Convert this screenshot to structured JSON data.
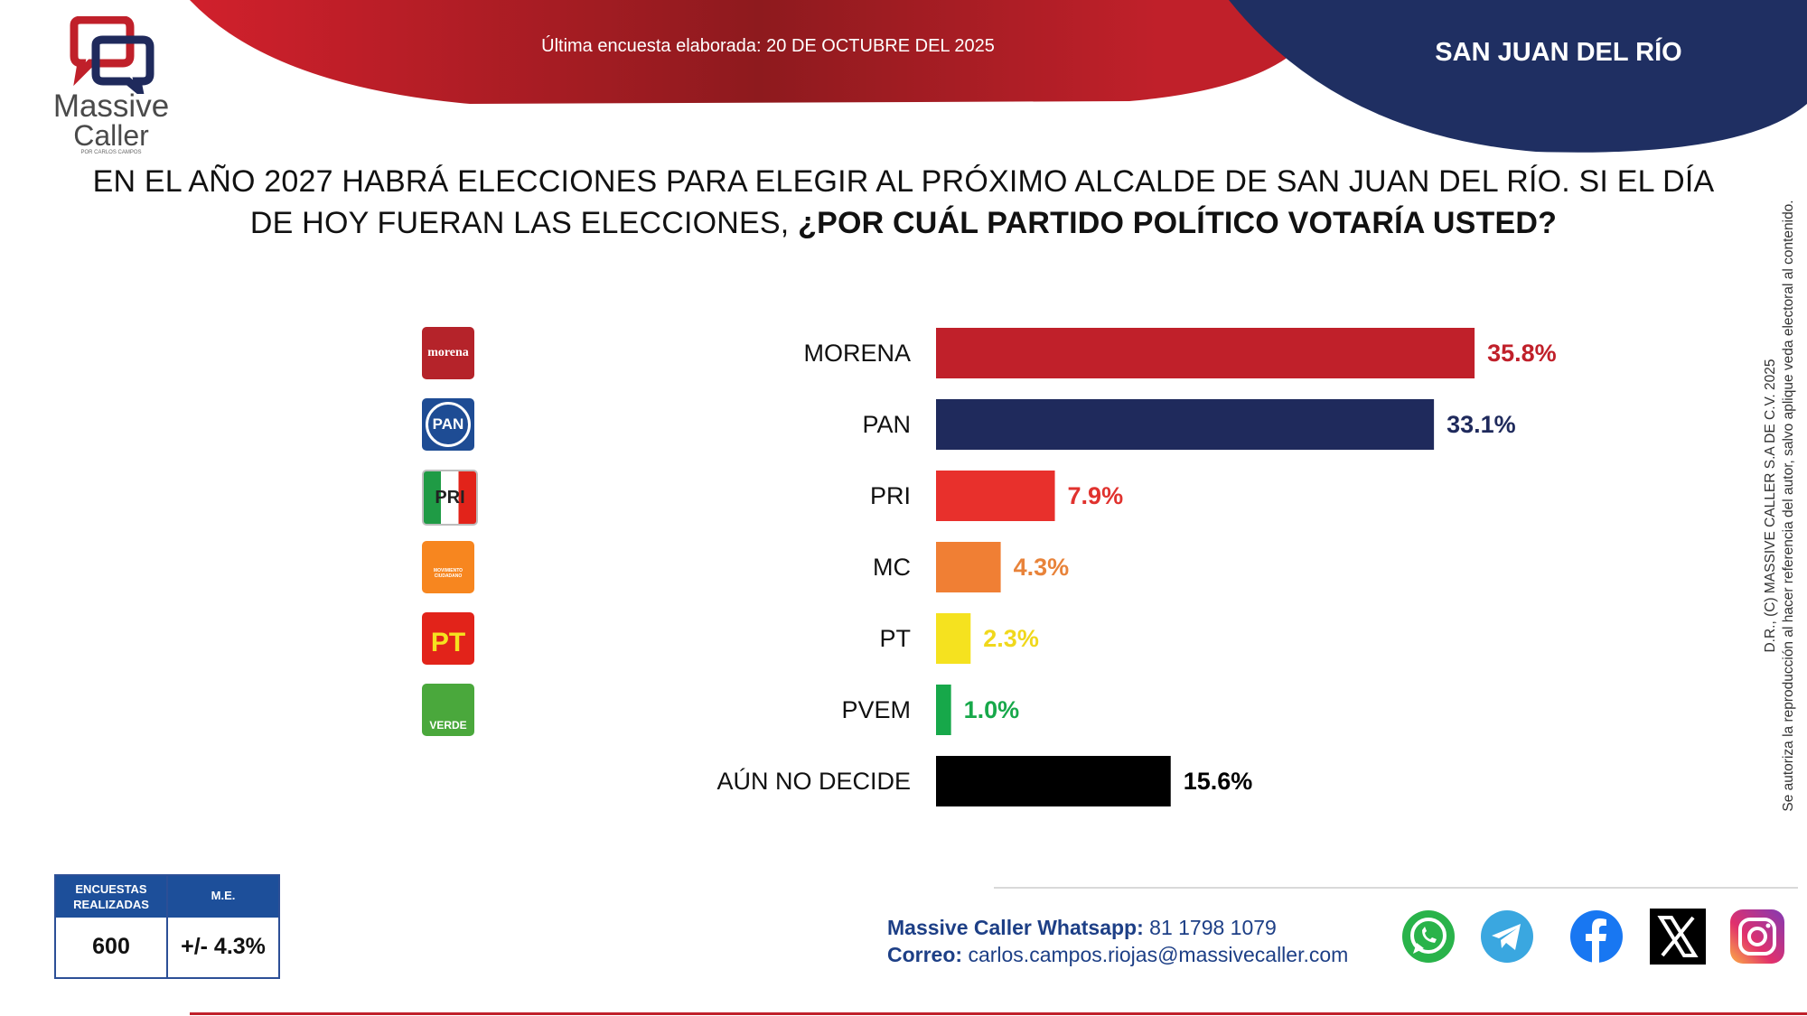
{
  "header": {
    "survey_date": "Última encuesta elaborada: 20 DE OCTUBRE DEL 2025",
    "region": "SAN JUAN DEL RÍO",
    "brand_line1": "Massive",
    "brand_line2": "Caller",
    "brand_tagline": "POR CARLOS CAMPOS"
  },
  "question": {
    "part1": "EN EL AÑO 2027 HABRÁ ELECCIONES PARA ELEGIR AL PRÓXIMO ALCALDE DE SAN JUAN DEL RÍO. SI EL DÍA DE HOY FUERAN LAS ELECCIONES,",
    "part2": "¿POR CUÁL PARTIDO POLÍTICO VOTARÍA USTED?"
  },
  "chart_data": {
    "type": "bar",
    "orientation": "horizontal",
    "categories": [
      "MORENA",
      "PAN",
      "PRI",
      "MC",
      "PT",
      "PVEM",
      "AÚN NO DECIDE"
    ],
    "values": [
      35.8,
      33.1,
      7.9,
      4.3,
      2.3,
      1.0,
      15.6
    ],
    "value_labels": [
      "35.8%",
      "33.1%",
      "7.9%",
      "4.3%",
      "2.3%",
      "1.0%",
      "15.6%"
    ],
    "colors": [
      "#c0202a",
      "#1f2a5c",
      "#e8302c",
      "#f07f34",
      "#f5e21f",
      "#17a84a",
      "#000000"
    ],
    "label_colors": [
      "#c0202a",
      "#1f2a5c",
      "#e0322e",
      "#e8833a",
      "#f0d81c",
      "#17a84a",
      "#000000"
    ],
    "unit": "%",
    "grid": false,
    "logos": [
      {
        "party": "MORENA",
        "icon": "morena-logo-icon",
        "text": "morena",
        "color": "#b5232a"
      },
      {
        "party": "PAN",
        "icon": "pan-logo-icon",
        "text": "PAN",
        "color": "#1e4c94"
      },
      {
        "party": "PRI",
        "icon": "pri-logo-icon",
        "text": "PRI",
        "color": "#c9c9c9"
      },
      {
        "party": "MC",
        "icon": "mc-logo-icon",
        "text": "MOVIMIENTO CIUDADANO",
        "color": "#f7861f"
      },
      {
        "party": "PT",
        "icon": "pt-logo-icon",
        "text": "PT",
        "color": "#e2231a"
      },
      {
        "party": "PVEM",
        "icon": "verde-logo-icon",
        "text": "VERDE",
        "color": "#4aa83c"
      }
    ]
  },
  "stats": {
    "surveys_label": "ENCUESTAS REALIZADAS",
    "surveys_value": "600",
    "me_label": "M.E.",
    "me_value": "+/- 4.3%"
  },
  "contact": {
    "whatsapp_label": "Massive Caller Whatsapp:",
    "whatsapp_value": "81 1798 1079",
    "email_label": "Correo:",
    "email_value": "carlos.campos.riojas@massivecaller.com"
  },
  "copyright": {
    "line1": "D.R., (C) MASSIVE CALLER S.A DE C.V. 2025",
    "line2": "Se autoriza la reproducción al hacer referencia del autor, salvo aplique veda electoral al contenido."
  },
  "social": [
    "whatsapp-icon",
    "telegram-icon",
    "facebook-icon",
    "x-icon",
    "instagram-icon"
  ],
  "colors": {
    "brand_red": "#c0202a",
    "brand_navy": "#1f2a5c",
    "stats_blue": "#1d4f9a"
  }
}
